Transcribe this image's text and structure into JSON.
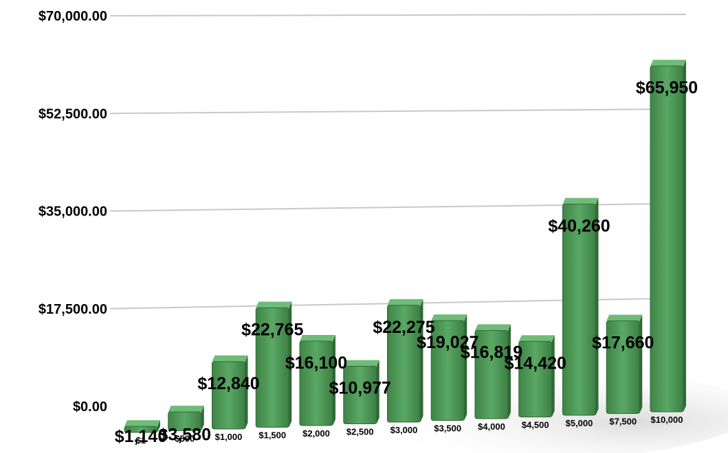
{
  "chart_data": {
    "type": "bar",
    "title": "",
    "xlabel": "",
    "ylabel": "",
    "ylim": [
      0,
      70000
    ],
    "grid": true,
    "legend": "none",
    "bar_color": "#4e9a57",
    "y_tick_labels": [
      "$0.00",
      "$17,500.00",
      "$35,000.00",
      "$52,500.00",
      "$70,000.00"
    ],
    "y_tick_values": [
      0,
      17500,
      35000,
      52500,
      70000
    ],
    "categories": [
      "$1",
      "$500",
      "$1,000",
      "$1,500",
      "$2,000",
      "$2,500",
      "$3,000",
      "$3,500",
      "$4,000",
      "$4,500",
      "$5,000",
      "$7,500",
      "$10,000"
    ],
    "values": [
      1140,
      3580,
      12840,
      22765,
      16100,
      10977,
      22275,
      19027,
      16819,
      14420,
      40260,
      17660,
      65950
    ],
    "value_labels": [
      "$1,140",
      "$3,580",
      "$12,840",
      "$22,765",
      "$16,100",
      "$10,977",
      "$22,275",
      "$19,027",
      "$16,819",
      "$14,420",
      "$40,260",
      "$17,660",
      "$65,950"
    ]
  }
}
